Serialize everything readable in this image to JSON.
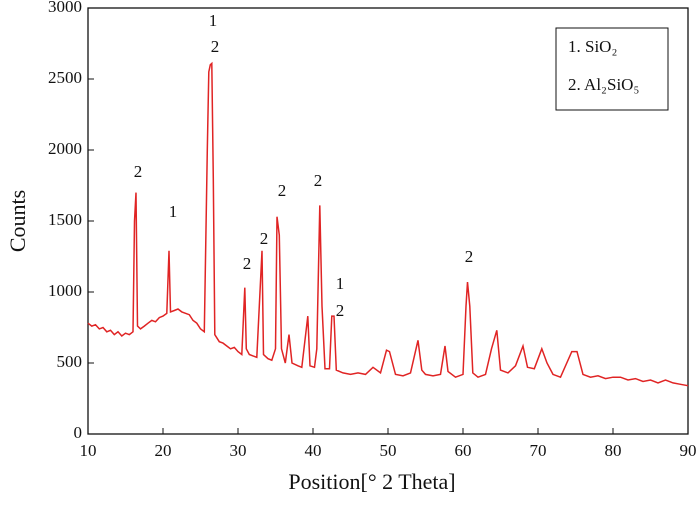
{
  "chart_data": {
    "type": "line",
    "xlabel": "Position[°  2 Theta]",
    "ylabel": "Counts",
    "color": "#e02424",
    "legend": [
      "1. SiO₂",
      "2. Al₂SiO₅"
    ],
    "annotations": [
      "2",
      "1",
      "1",
      "2",
      "2",
      "2",
      "2",
      "2",
      "1",
      "2",
      "2"
    ],
    "xlim": [
      10,
      90
    ],
    "xticks": [
      10,
      20,
      30,
      40,
      50,
      60,
      70,
      80,
      90
    ],
    "ylim": [
      0,
      3000
    ],
    "yticks": [
      0,
      500,
      1000,
      1500,
      2000,
      2500,
      3000
    ],
    "x": [
      10,
      10.5,
      11,
      11.5,
      12,
      12.5,
      13,
      13.5,
      14,
      14.5,
      15,
      15.5,
      16,
      16.2,
      16.4,
      16.6,
      17,
      17.5,
      18,
      18.5,
      19,
      19.5,
      20,
      20.5,
      20.8,
      21,
      21.5,
      22,
      22.5,
      23,
      23.5,
      24,
      24.5,
      25,
      25.5,
      25.9,
      26.1,
      26.3,
      26.5,
      26.7,
      26.9,
      27.5,
      28,
      28.5,
      29,
      29.5,
      30,
      30.5,
      30.9,
      31.1,
      31.5,
      32,
      32.5,
      33.2,
      33.4,
      34,
      34.5,
      35,
      35.2,
      35.5,
      35.8,
      36.3,
      36.8,
      37.2,
      38,
      38.5,
      39.3,
      39.6,
      40.2,
      40.5,
      40.9,
      41.2,
      41.6,
      42.2,
      42.5,
      42.8,
      43.1,
      44,
      45,
      46,
      47,
      48,
      49,
      49.8,
      50.2,
      51,
      52,
      53,
      54,
      54.5,
      55,
      56,
      57,
      57.6,
      58,
      59,
      60,
      60.4,
      60.6,
      60.9,
      61.3,
      62,
      63,
      63.8,
      64.5,
      65,
      66,
      67,
      68,
      68.6,
      69.5,
      70.5,
      71.2,
      72,
      73,
      74.5,
      75.2,
      76,
      77,
      78,
      79,
      80,
      81,
      82,
      83,
      84,
      85,
      86,
      87,
      88,
      89,
      90
    ],
    "values": [
      780,
      760,
      770,
      740,
      750,
      720,
      730,
      700,
      720,
      690,
      710,
      700,
      720,
      1500,
      1700,
      760,
      740,
      760,
      780,
      800,
      790,
      820,
      830,
      850,
      1290,
      860,
      870,
      880,
      860,
      850,
      840,
      800,
      780,
      740,
      720,
      2000,
      2550,
      2600,
      2610,
      1800,
      700,
      650,
      640,
      620,
      600,
      610,
      580,
      560,
      1030,
      600,
      560,
      550,
      540,
      1290,
      560,
      530,
      520,
      600,
      1530,
      1400,
      600,
      500,
      700,
      500,
      480,
      470,
      830,
      480,
      470,
      600,
      1610,
      900,
      460,
      460,
      830,
      830,
      450,
      430,
      420,
      430,
      420,
      470,
      430,
      590,
      580,
      420,
      410,
      430,
      660,
      450,
      420,
      410,
      420,
      620,
      440,
      400,
      420,
      900,
      1070,
      900,
      430,
      400,
      420,
      600,
      730,
      450,
      430,
      480,
      620,
      470,
      460,
      600,
      500,
      420,
      400,
      580,
      580,
      420,
      400,
      410,
      390,
      400,
      400,
      380,
      390,
      370,
      380,
      360,
      380,
      360,
      350,
      340
    ]
  }
}
